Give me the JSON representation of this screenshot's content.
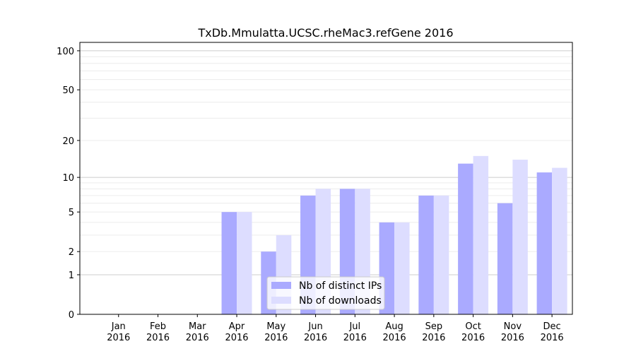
{
  "chart_data": {
    "type": "bar",
    "title": "TxDb.Mmulatta.UCSC.rheMac3.refGene 2016",
    "xlabel": "",
    "ylabel": "",
    "y_scale": "log10(1+y)",
    "ylim": [
      0,
      116
    ],
    "yticks": [
      0,
      1,
      2,
      5,
      10,
      20,
      50,
      100
    ],
    "grid": true,
    "legend_placement": "lower-center",
    "categories": [
      "Jan\n2016",
      "Feb\n2016",
      "Mar\n2016",
      "Apr\n2016",
      "May\n2016",
      "Jun\n2016",
      "Jul\n2016",
      "Aug\n2016",
      "Sep\n2016",
      "Oct\n2016",
      "Nov\n2016",
      "Dec\n2016"
    ],
    "series": [
      {
        "name": "Nb of distinct IPs",
        "color": "#aaaaff",
        "values": [
          0,
          0,
          0,
          5,
          2,
          7,
          8,
          4,
          7,
          13,
          6,
          11
        ]
      },
      {
        "name": "Nb of downloads",
        "color": "#ddddff",
        "values": [
          0,
          0,
          0,
          5,
          3,
          8,
          8,
          4,
          7,
          15,
          14,
          12
        ]
      }
    ]
  }
}
